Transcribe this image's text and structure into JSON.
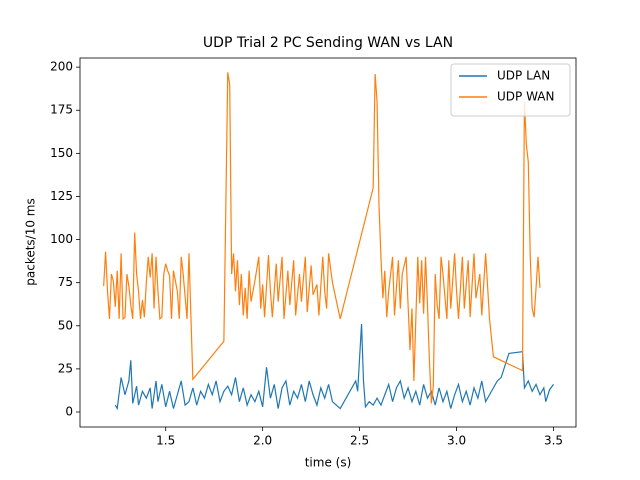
{
  "chart_data": {
    "type": "line",
    "title": "UDP Trial 2 PC Sending WAN vs LAN",
    "x_label": "time (s)",
    "y_label": "packets/10 ms",
    "xlim": [
      1.058,
      3.616
    ],
    "ylim": [
      -8.7,
      205.3
    ],
    "xticks": [
      {
        "value": 1.5,
        "label": "1.5"
      },
      {
        "value": 2,
        "label": "2.0"
      },
      {
        "value": 2.5,
        "label": "2.5"
      },
      {
        "value": 3,
        "label": "3.0"
      },
      {
        "value": 3.5,
        "label": "3.5"
      }
    ],
    "yticks": [
      0,
      25,
      50,
      75,
      100,
      125,
      150,
      175,
      200
    ],
    "legend": "upper right",
    "series": [
      {
        "name": "UDP LAN",
        "color": "#1f77b4",
        "x": [
          1.24,
          1.25,
          1.27,
          1.29,
          1.31,
          1.32,
          1.33,
          1.35,
          1.36,
          1.38,
          1.4,
          1.42,
          1.43,
          1.45,
          1.46,
          1.48,
          1.5,
          1.52,
          1.54,
          1.56,
          1.58,
          1.6,
          1.62,
          1.64,
          1.66,
          1.68,
          1.7,
          1.72,
          1.74,
          1.76,
          1.78,
          1.8,
          1.82,
          1.84,
          1.86,
          1.88,
          1.9,
          1.92,
          1.94,
          1.96,
          1.98,
          2.0,
          2.02,
          2.04,
          2.06,
          2.08,
          2.1,
          2.12,
          2.14,
          2.16,
          2.18,
          2.2,
          2.22,
          2.24,
          2.26,
          2.28,
          2.3,
          2.32,
          2.34,
          2.36,
          2.4,
          2.48,
          2.49,
          2.51,
          2.52,
          2.53,
          2.55,
          2.57,
          2.59,
          2.61,
          2.63,
          2.65,
          2.67,
          2.69,
          2.71,
          2.73,
          2.75,
          2.77,
          2.79,
          2.81,
          2.83,
          2.85,
          2.87,
          2.89,
          2.91,
          2.93,
          2.95,
          2.97,
          2.99,
          3.01,
          3.03,
          3.05,
          3.07,
          3.09,
          3.11,
          3.13,
          3.15,
          3.17,
          3.19,
          3.21,
          3.23,
          3.27,
          3.34,
          3.35,
          3.37,
          3.39,
          3.41,
          3.43,
          3.45,
          3.46,
          3.48,
          3.5
        ],
        "values": [
          4,
          2,
          20,
          10,
          18,
          30,
          5,
          15,
          4,
          12,
          8,
          14,
          2,
          18,
          6,
          16,
          3,
          12,
          2,
          10,
          18,
          4,
          6,
          14,
          4,
          12,
          8,
          16,
          10,
          18,
          6,
          12,
          15,
          10,
          20,
          6,
          14,
          4,
          10,
          6,
          12,
          3,
          26,
          8,
          16,
          2,
          14,
          18,
          4,
          12,
          8,
          16,
          6,
          18,
          10,
          4,
          14,
          8,
          16,
          6,
          2,
          18,
          12,
          51,
          18,
          3,
          6,
          4,
          8,
          4,
          10,
          16,
          6,
          14,
          18,
          8,
          14,
          6,
          12,
          4,
          16,
          8,
          12,
          4,
          14,
          6,
          12,
          2,
          10,
          16,
          6,
          12,
          4,
          14,
          8,
          18,
          6,
          10,
          14,
          18,
          20,
          34,
          35,
          14,
          18,
          12,
          16,
          10,
          14,
          6,
          13,
          16
        ]
      },
      {
        "name": "UDP WAN",
        "color": "#ff7f0e",
        "x": [
          1.18,
          1.19,
          1.2,
          1.21,
          1.22,
          1.23,
          1.24,
          1.25,
          1.26,
          1.27,
          1.28,
          1.29,
          1.3,
          1.31,
          1.32,
          1.33,
          1.34,
          1.35,
          1.36,
          1.37,
          1.38,
          1.39,
          1.4,
          1.41,
          1.42,
          1.43,
          1.44,
          1.45,
          1.46,
          1.47,
          1.48,
          1.49,
          1.5,
          1.51,
          1.52,
          1.53,
          1.54,
          1.56,
          1.57,
          1.58,
          1.59,
          1.61,
          1.62,
          1.64,
          1.8,
          1.82,
          1.83,
          1.84,
          1.85,
          1.86,
          1.87,
          1.88,
          1.89,
          1.9,
          1.91,
          1.92,
          1.93,
          1.94,
          1.96,
          1.98,
          1.99,
          2.0,
          2.01,
          2.03,
          2.04,
          2.05,
          2.07,
          2.08,
          2.1,
          2.11,
          2.13,
          2.14,
          2.16,
          2.17,
          2.19,
          2.2,
          2.22,
          2.23,
          2.25,
          2.26,
          2.28,
          2.29,
          2.31,
          2.32,
          2.33,
          2.34,
          2.36,
          2.4,
          2.57,
          2.58,
          2.59,
          2.6,
          2.61,
          2.62,
          2.63,
          2.64,
          2.65,
          2.67,
          2.68,
          2.7,
          2.71,
          2.72,
          2.74,
          2.75,
          2.76,
          2.77,
          2.78,
          2.79,
          2.8,
          2.81,
          2.82,
          2.83,
          2.84,
          2.85,
          2.86,
          2.87,
          2.88,
          2.89,
          2.9,
          2.91,
          2.92,
          2.93,
          2.95,
          2.96,
          2.97,
          2.99,
          3.0,
          3.01,
          3.03,
          3.04,
          3.06,
          3.07,
          3.09,
          3.1,
          3.12,
          3.13,
          3.15,
          3.17,
          3.19,
          3.34,
          3.35,
          3.36,
          3.37,
          3.38,
          3.39,
          3.4,
          3.41,
          3.42,
          3.43
        ],
        "values": [
          73,
          93,
          70,
          54,
          80,
          76,
          61,
          82,
          54,
          92,
          54,
          55,
          80,
          73,
          62,
          54,
          104,
          80,
          70,
          54,
          65,
          55,
          75,
          90,
          78,
          92,
          60,
          90,
          70,
          54,
          55,
          80,
          86,
          82,
          79,
          54,
          82,
          70,
          54,
          90,
          80,
          54,
          92,
          19,
          41,
          197,
          190,
          80,
          92,
          70,
          88,
          62,
          80,
          56,
          72,
          54,
          82,
          64,
          76,
          90,
          60,
          74,
          55,
          91,
          70,
          55,
          86,
          64,
          90,
          54,
          82,
          62,
          88,
          56,
          80,
          64,
          90,
          58,
          85,
          68,
          74,
          56,
          90,
          70,
          60,
          92,
          75,
          54,
          130,
          196,
          180,
          120,
          90,
          66,
          82,
          55,
          70,
          90,
          56,
          88,
          60,
          80,
          90,
          62,
          36,
          60,
          18,
          54,
          90,
          63,
          88,
          57,
          90,
          62,
          30,
          5,
          15,
          80,
          62,
          54,
          90,
          80,
          54,
          88,
          60,
          92,
          70,
          54,
          90,
          60,
          88,
          55,
          92,
          66,
          80,
          56,
          92,
          54,
          32,
          24,
          180,
          155,
          145,
          90,
          60,
          55,
          72,
          90,
          72
        ]
      }
    ]
  }
}
